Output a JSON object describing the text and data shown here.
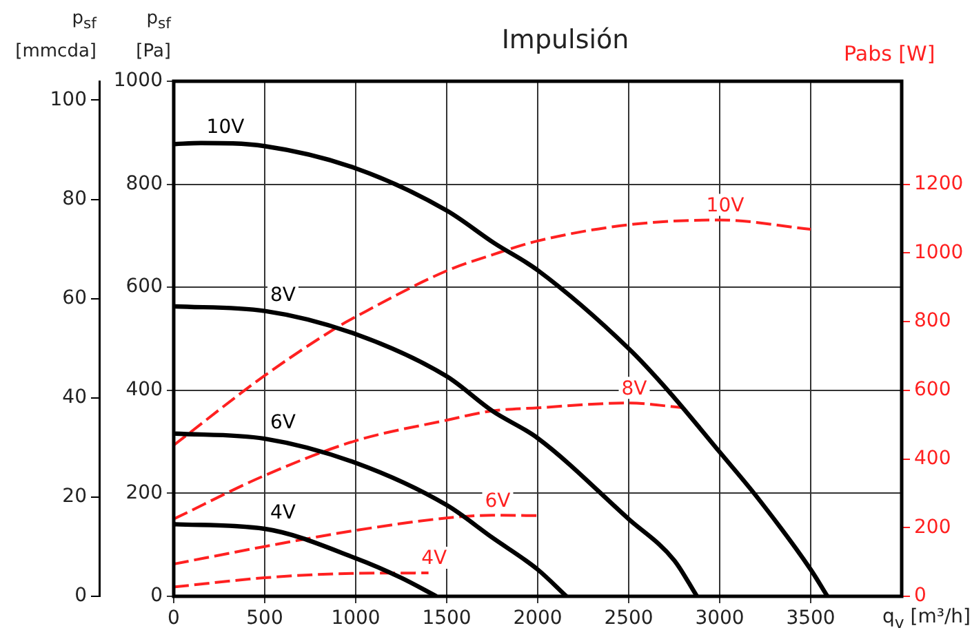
{
  "chart_data": {
    "type": "line",
    "title": "Impulsión",
    "xlabel": "q$_{v}$ [m³/h]",
    "ylabel": "p$_{sf}$ [Pa]",
    "y3label": "p$_{sf}$ [mmcda]",
    "y2label": "Pabs [W]",
    "xlim": [
      0,
      4000
    ],
    "xticks": [
      0,
      500,
      1000,
      1500,
      2000,
      2500,
      3000,
      3500
    ],
    "ylim": [
      0,
      1000
    ],
    "yticks": [
      0,
      200,
      400,
      600,
      800,
      1000
    ],
    "y2lim": [
      0,
      1500
    ],
    "y2ticks": [
      0,
      200,
      400,
      600,
      800,
      1000,
      1200
    ],
    "y3lim": [
      0,
      103.8
    ],
    "y3ticks": [
      0,
      20,
      40,
      60,
      80,
      100
    ],
    "grid": true,
    "series": [
      {
        "name": "10V",
        "color": "#000000",
        "line_style": "solid",
        "axis": "y",
        "x": [
          0,
          150,
          500,
          1000,
          1500,
          1760,
          2000,
          2500,
          2715,
          3000,
          3200,
          3500,
          3592
        ],
        "values": [
          878,
          880,
          874,
          831,
          749,
          686,
          633,
          481,
          400,
          280,
          195,
          52,
          0
        ]
      },
      {
        "name": "8V",
        "color": "#000000",
        "line_style": "solid",
        "axis": "y",
        "x": [
          0,
          500,
          1000,
          1500,
          1750,
          2000,
          2500,
          2750,
          2875
        ],
        "values": [
          563,
          554,
          509,
          427,
          360,
          307,
          150,
          70,
          0
        ]
      },
      {
        "name": "6V",
        "color": "#000000",
        "line_style": "solid",
        "axis": "y",
        "x": [
          0,
          500,
          1000,
          1500,
          1750,
          2000,
          2158
        ],
        "values": [
          316,
          306,
          259,
          177,
          114,
          52,
          0
        ]
      },
      {
        "name": "4V",
        "color": "#000000",
        "line_style": "solid",
        "axis": "y",
        "x": [
          0,
          500,
          1000,
          1250,
          1444
        ],
        "values": [
          140,
          131,
          74,
          36,
          0
        ]
      },
      {
        "name": "10V",
        "color": "#ff2020",
        "line_style": "dashed",
        "axis": "y2",
        "x": [
          0,
          500,
          890,
          1000,
          1500,
          1753,
          2000,
          2500,
          3000,
          3500
        ],
        "values": [
          440,
          643,
          781,
          814,
          948,
          995,
          1035,
          1082,
          1096,
          1069
        ]
      },
      {
        "name": "8V",
        "color": "#ff2020",
        "line_style": "dashed",
        "axis": "y2",
        "x": [
          0,
          500,
          1000,
          1500,
          1750,
          2000,
          2500,
          2800
        ],
        "values": [
          225,
          352,
          453,
          513,
          540,
          549,
          563,
          549
        ]
      },
      {
        "name": "6V",
        "color": "#ff2020",
        "line_style": "dashed",
        "axis": "y2",
        "x": [
          0,
          500,
          1000,
          1500,
          1750,
          2000
        ],
        "values": [
          94,
          145,
          192,
          228,
          236,
          235
        ]
      },
      {
        "name": "4V",
        "color": "#ff2020",
        "line_style": "dashed",
        "axis": "y2",
        "x": [
          0,
          500,
          1000,
          1400
        ],
        "values": [
          27,
          54,
          67,
          68
        ]
      }
    ]
  }
}
